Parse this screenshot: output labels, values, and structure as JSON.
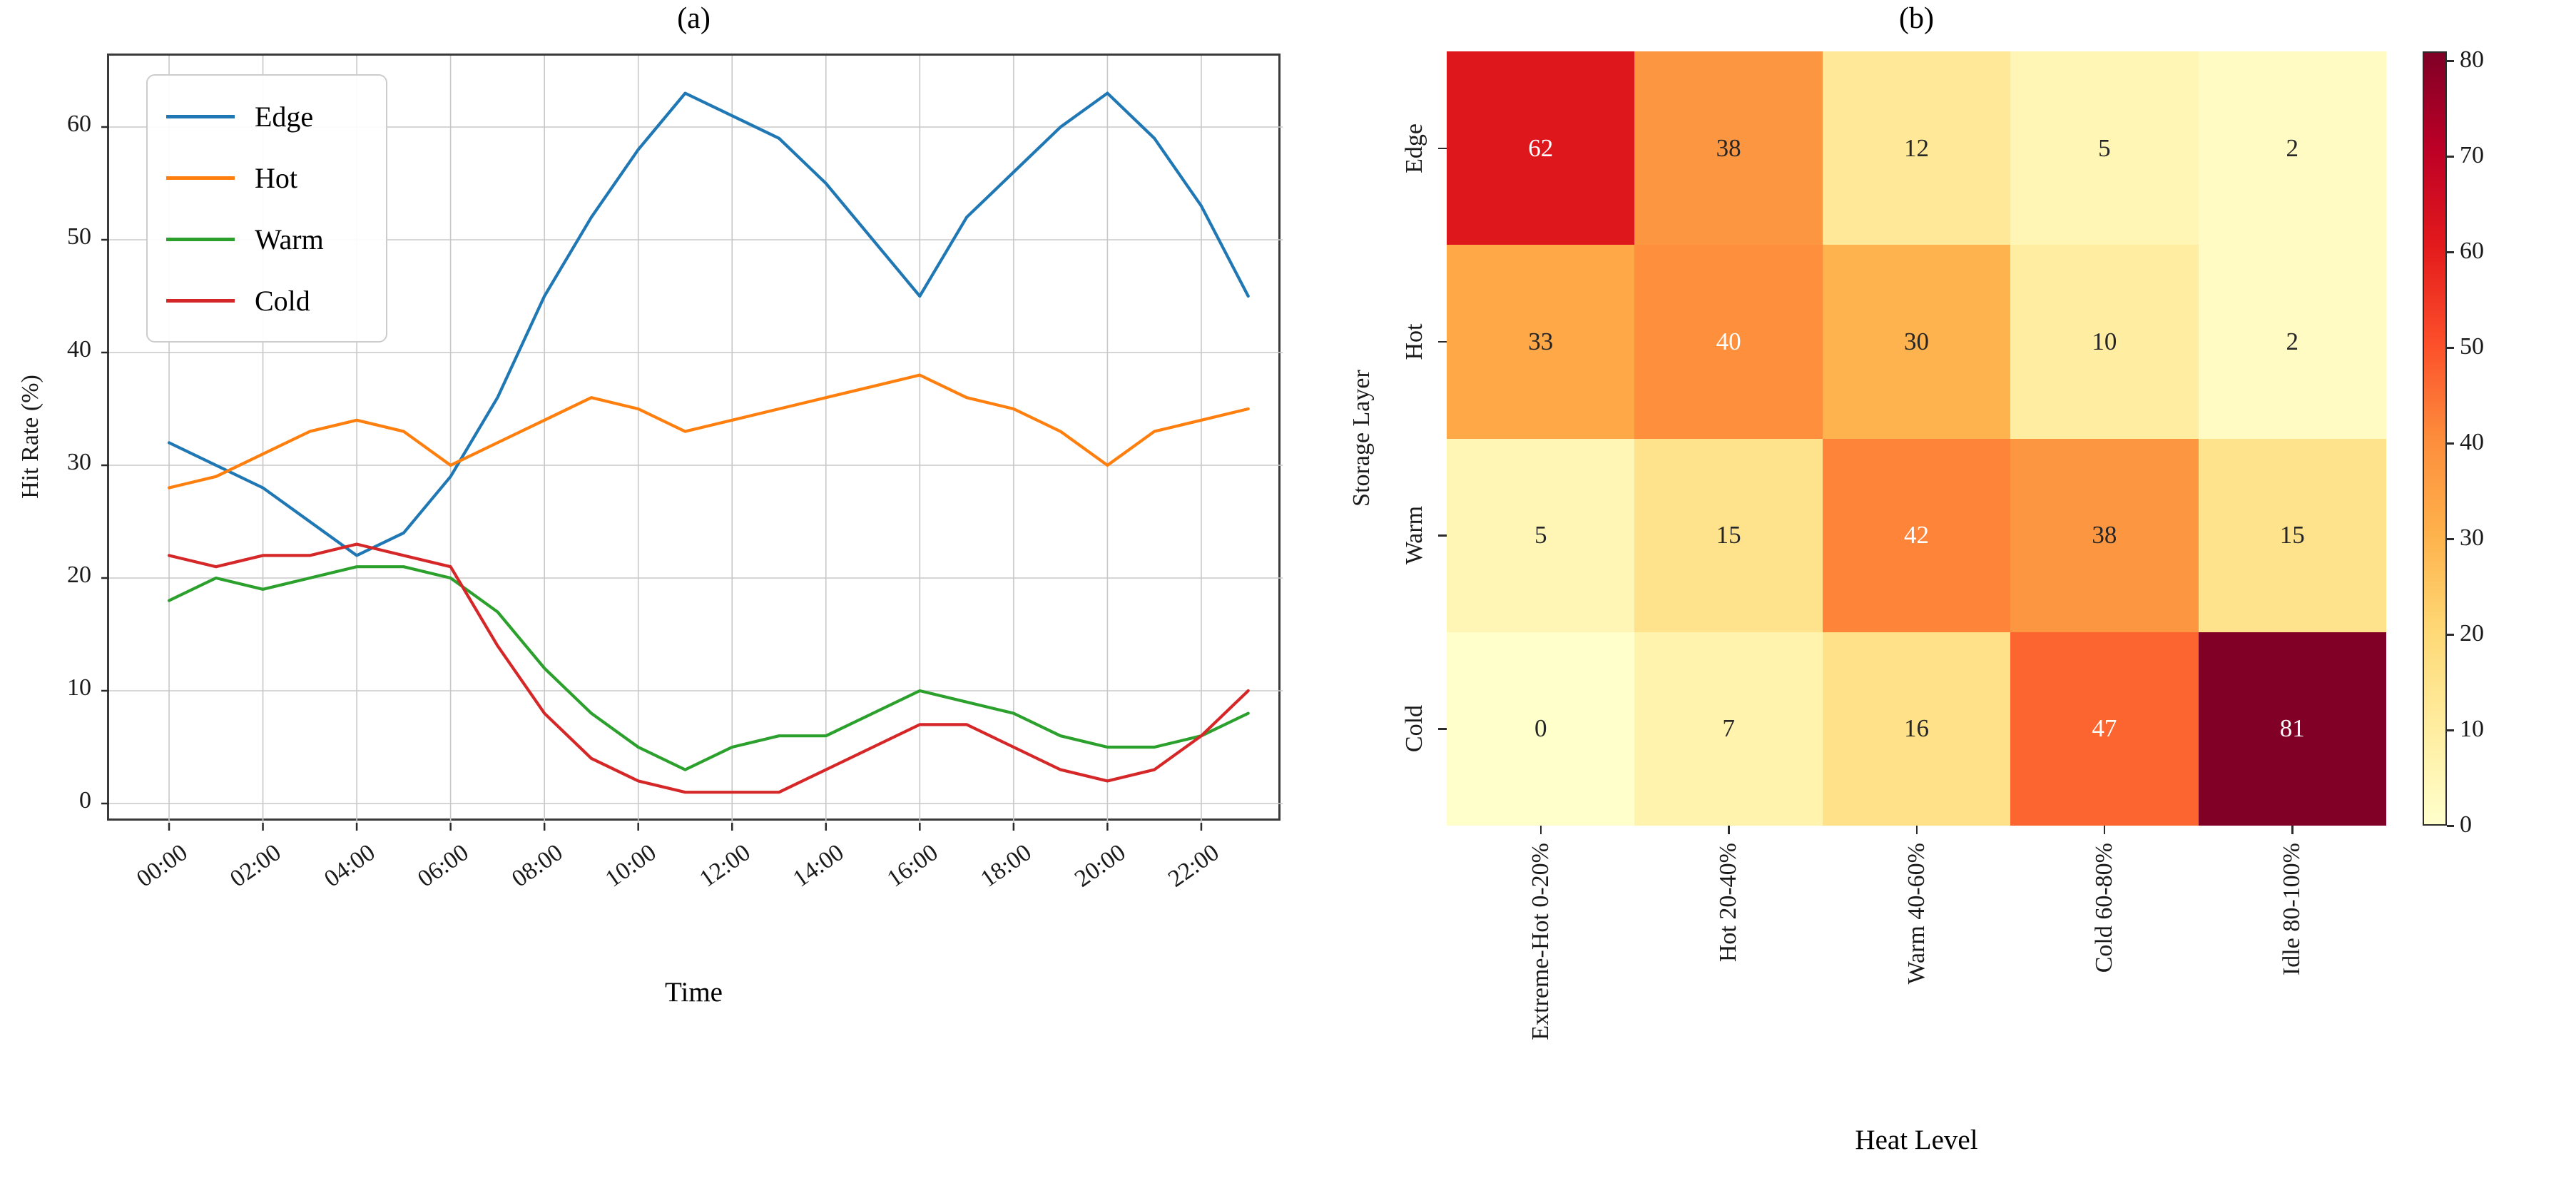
{
  "figure": {
    "background": "#ffffff",
    "font_color": "#000000"
  },
  "chart_data": [
    {
      "type": "line",
      "title": "(a)",
      "xlabel": "Time",
      "ylabel": "Hit Rate (%)",
      "x_hours": [
        0,
        1,
        2,
        3,
        4,
        5,
        6,
        7,
        8,
        9,
        10,
        11,
        12,
        13,
        14,
        15,
        16,
        17,
        18,
        19,
        20,
        21,
        22,
        23
      ],
      "xtick_hours": [
        0,
        2,
        4,
        6,
        8,
        10,
        12,
        14,
        16,
        18,
        20,
        22
      ],
      "xtick_labels": [
        "00:00",
        "02:00",
        "04:00",
        "06:00",
        "08:00",
        "10:00",
        "12:00",
        "14:00",
        "16:00",
        "18:00",
        "20:00",
        "22:00"
      ],
      "yticks": [
        0,
        10,
        20,
        30,
        40,
        50,
        60
      ],
      "ylim": [
        -2,
        66
      ],
      "grid": true,
      "legend_position": "upper left",
      "series": [
        {
          "name": "Edge",
          "color": "#1f77b4",
          "values": [
            32,
            30,
            28,
            25,
            22,
            24,
            29,
            36,
            45,
            52,
            58,
            63,
            61,
            59,
            55,
            50,
            45,
            52,
            56,
            60,
            63,
            59,
            53,
            45
          ]
        },
        {
          "name": "Hot",
          "color": "#ff7f0e",
          "values": [
            28,
            29,
            31,
            33,
            34,
            33,
            30,
            32,
            34,
            36,
            35,
            33,
            34,
            35,
            36,
            37,
            38,
            36,
            35,
            33,
            30,
            33,
            34,
            35
          ]
        },
        {
          "name": "Warm",
          "color": "#2ca02c",
          "values": [
            18,
            20,
            19,
            20,
            21,
            21,
            20,
            17,
            12,
            8,
            5,
            3,
            5,
            6,
            6,
            8,
            10,
            9,
            8,
            6,
            5,
            5,
            6,
            8
          ]
        },
        {
          "name": "Cold",
          "color": "#d62728",
          "values": [
            22,
            21,
            22,
            22,
            23,
            22,
            21,
            14,
            8,
            4,
            2,
            1,
            1,
            1,
            3,
            5,
            7,
            7,
            5,
            3,
            2,
            3,
            6,
            10
          ]
        }
      ]
    },
    {
      "type": "heatmap",
      "title": "(b)",
      "xlabel": "Heat Level",
      "ylabel": "Storage Layer",
      "rows": [
        "Edge",
        "Hot",
        "Warm",
        "Cold"
      ],
      "columns": [
        "Extreme-Hot 0-20%",
        "Hot 20-40%",
        "Warm 40-60%",
        "Cold 60-80%",
        "Idle 80-100%"
      ],
      "values": [
        [
          62,
          38,
          12,
          5,
          2
        ],
        [
          33,
          40,
          30,
          10,
          2
        ],
        [
          5,
          15,
          42,
          38,
          15
        ],
        [
          0,
          7,
          16,
          47,
          81
        ]
      ],
      "vmin": 0,
      "vmax": 81,
      "colormap": "YlOrRd",
      "colormap_stops": [
        {
          "pos": 0.0,
          "color": "#ffffcc"
        },
        {
          "pos": 0.125,
          "color": "#ffeda0"
        },
        {
          "pos": 0.25,
          "color": "#fed976"
        },
        {
          "pos": 0.375,
          "color": "#feb24c"
        },
        {
          "pos": 0.5,
          "color": "#fd8d3c"
        },
        {
          "pos": 0.625,
          "color": "#fc4e2a"
        },
        {
          "pos": 0.75,
          "color": "#e31a1c"
        },
        {
          "pos": 0.875,
          "color": "#bd0026"
        },
        {
          "pos": 1.0,
          "color": "#800026"
        }
      ],
      "colorbar_ticks": [
        0,
        10,
        20,
        30,
        40,
        50,
        60,
        70,
        80
      ],
      "annotation_light_text_color": "#ffffff",
      "annotation_dark_text_color": "#262626",
      "annotation_text_threshold": 0.48,
      "grid_color": "#c8c8c8"
    }
  ]
}
